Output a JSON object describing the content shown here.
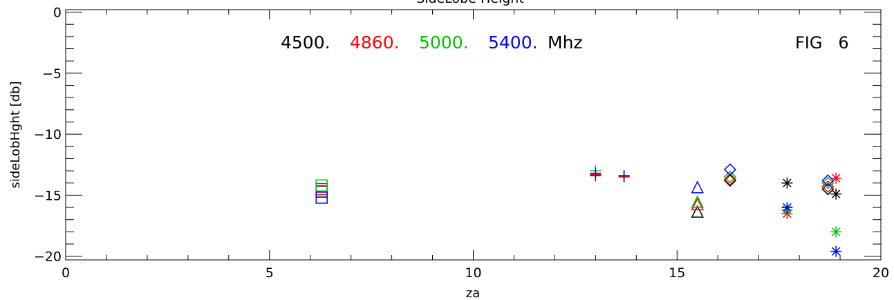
{
  "chart_data": {
    "type": "scatter",
    "title": "SideLobe Height",
    "fig_label": "FIG   6",
    "xlabel": "za",
    "ylabel": "sideLobHght [db]",
    "xlim": [
      0,
      20
    ],
    "ylim": [
      -20.3,
      0.2
    ],
    "x_ticks": [
      0,
      5,
      10,
      15,
      20
    ],
    "y_ticks": [
      0,
      -5,
      -10,
      -15,
      -20
    ],
    "x_tick_labels": [
      "0",
      "5",
      "10",
      "15",
      "20"
    ],
    "y_tick_labels": [
      "0",
      "−5",
      "−10",
      "−15",
      "−20"
    ],
    "grid": false,
    "legend": {
      "position": "top-center",
      "entries": [
        "4500.",
        "4860.",
        "5000.",
        "5400."
      ],
      "unit": "Mhz"
    },
    "series": [
      {
        "name": "4500.",
        "color": "#000000",
        "points": [
          {
            "x": 6.28,
            "y": -14.7,
            "marker": "square"
          },
          {
            "x": 13.0,
            "y": -13.4,
            "marker": "plus"
          },
          {
            "x": 13.7,
            "y": -13.5,
            "marker": "plus"
          },
          {
            "x": 15.5,
            "y": -16.4,
            "marker": "triangle"
          },
          {
            "x": 16.3,
            "y": -13.8,
            "marker": "diamond"
          },
          {
            "x": 17.7,
            "y": -14.0,
            "marker": "asterisk"
          },
          {
            "x": 18.7,
            "y": -14.5,
            "marker": "diamond"
          },
          {
            "x": 18.9,
            "y": -14.9,
            "marker": "asterisk"
          }
        ]
      },
      {
        "name": "4860.",
        "color": "#ff0000",
        "points": [
          {
            "x": 6.28,
            "y": -14.5,
            "marker": "square"
          },
          {
            "x": 13.0,
            "y": -13.3,
            "marker": "plus"
          },
          {
            "x": 13.7,
            "y": -13.5,
            "marker": "plus"
          },
          {
            "x": 15.5,
            "y": -15.8,
            "marker": "triangle"
          },
          {
            "x": 16.3,
            "y": -13.7,
            "marker": "diamond"
          },
          {
            "x": 17.7,
            "y": -16.5,
            "marker": "asterisk"
          },
          {
            "x": 18.7,
            "y": -14.3,
            "marker": "diamond"
          },
          {
            "x": 18.9,
            "y": -13.6,
            "marker": "asterisk"
          }
        ]
      },
      {
        "name": "5000.",
        "color": "#00c000",
        "points": [
          {
            "x": 6.28,
            "y": -14.2,
            "marker": "square"
          },
          {
            "x": 13.0,
            "y": -13.0,
            "marker": "plus"
          },
          {
            "x": 13.7,
            "y": -13.4,
            "marker": "plus"
          },
          {
            "x": 15.5,
            "y": -15.6,
            "marker": "triangle"
          },
          {
            "x": 16.3,
            "y": -13.5,
            "marker": "diamond"
          },
          {
            "x": 17.7,
            "y": -16.2,
            "marker": "asterisk"
          },
          {
            "x": 18.7,
            "y": -14.0,
            "marker": "diamond"
          },
          {
            "x": 18.9,
            "y": -18.0,
            "marker": "asterisk"
          }
        ]
      },
      {
        "name": "5400.",
        "color": "#0000ff",
        "points": [
          {
            "x": 6.28,
            "y": -15.2,
            "marker": "square"
          },
          {
            "x": 13.0,
            "y": -13.2,
            "marker": "plus"
          },
          {
            "x": 13.7,
            "y": -13.4,
            "marker": "plus"
          },
          {
            "x": 15.5,
            "y": -14.4,
            "marker": "triangle"
          },
          {
            "x": 16.3,
            "y": -12.9,
            "marker": "diamond"
          },
          {
            "x": 17.7,
            "y": -16.0,
            "marker": "asterisk"
          },
          {
            "x": 18.7,
            "y": -13.8,
            "marker": "diamond"
          },
          {
            "x": 18.9,
            "y": -19.6,
            "marker": "asterisk"
          }
        ]
      }
    ]
  }
}
